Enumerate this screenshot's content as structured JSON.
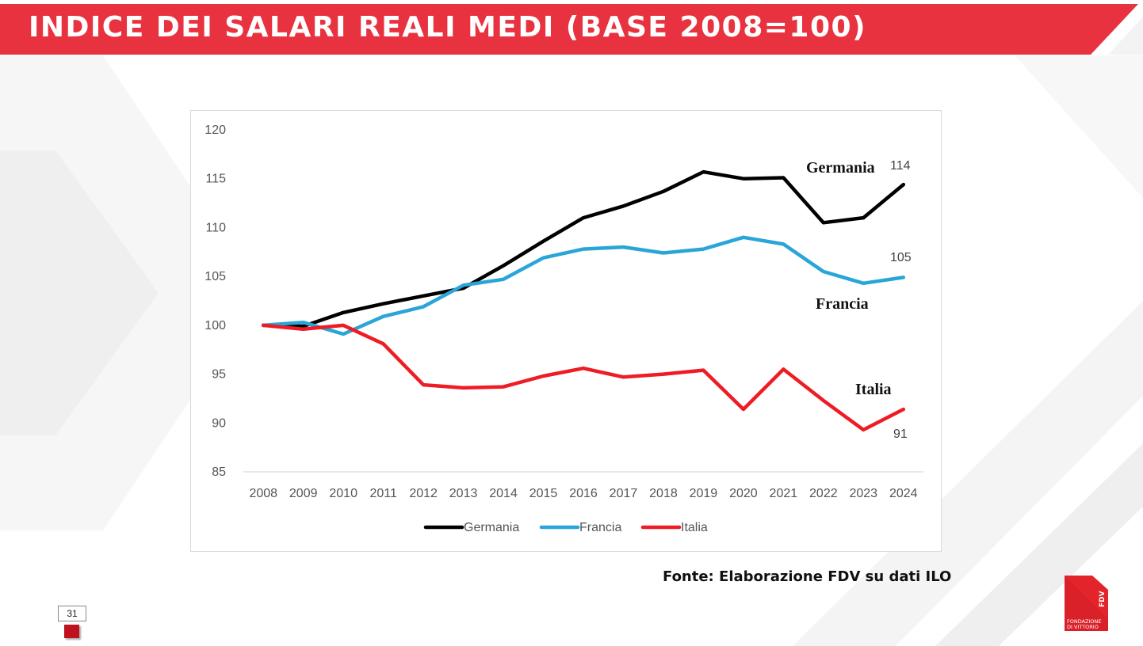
{
  "header": {
    "title": "INDICE DEI SALARI REALI MEDI (BASE 2008=100)"
  },
  "chart_data": {
    "type": "line",
    "categories": [
      "2008",
      "2009",
      "2010",
      "2011",
      "2012",
      "2013",
      "2014",
      "2015",
      "2016",
      "2017",
      "2018",
      "2019",
      "2020",
      "2021",
      "2022",
      "2023",
      "2024"
    ],
    "ylim": [
      85,
      120
    ],
    "yticks": [
      85,
      90,
      95,
      100,
      105,
      110,
      115,
      120
    ],
    "grid": false,
    "legend_position": "bottom",
    "series": [
      {
        "name": "Germania",
        "color": "#000000",
        "values": [
          100,
          99.9,
          101.3,
          102.2,
          103.0,
          103.8,
          106.1,
          108.6,
          111.0,
          112.2,
          113.7,
          115.7,
          115.0,
          115.1,
          110.5,
          111.0,
          114.4
        ]
      },
      {
        "name": "Francia",
        "color": "#2aa5d8",
        "values": [
          100,
          100.3,
          99.1,
          100.9,
          101.9,
          104.1,
          104.7,
          106.9,
          107.8,
          108.0,
          107.4,
          107.8,
          109.0,
          108.3,
          105.5,
          104.3,
          104.9
        ]
      },
      {
        "name": "Italia",
        "color": "#ee1c25",
        "values": [
          100,
          99.6,
          100.0,
          98.1,
          93.9,
          93.6,
          93.7,
          94.8,
          95.6,
          94.7,
          95.0,
          95.4,
          91.4,
          95.5,
          92.3,
          89.3,
          91.4
        ]
      }
    ],
    "annotations": {
      "germania_label": "Germania",
      "francia_label": "Francia",
      "italia_label": "Italia",
      "germania_end": "114",
      "francia_end": "105",
      "italia_end": "91"
    }
  },
  "footer": {
    "source": "Fonte: Elaborazione FDV su dati ILO",
    "page_number": "31",
    "logo_mark": "FDV",
    "logo_caption_1": "FONDAZIONE",
    "logo_caption_2": "DI VITTORIO"
  },
  "colors": {
    "banner": "#e8323f",
    "accent_dark": "#c0111f",
    "logo": "#e3242b"
  }
}
